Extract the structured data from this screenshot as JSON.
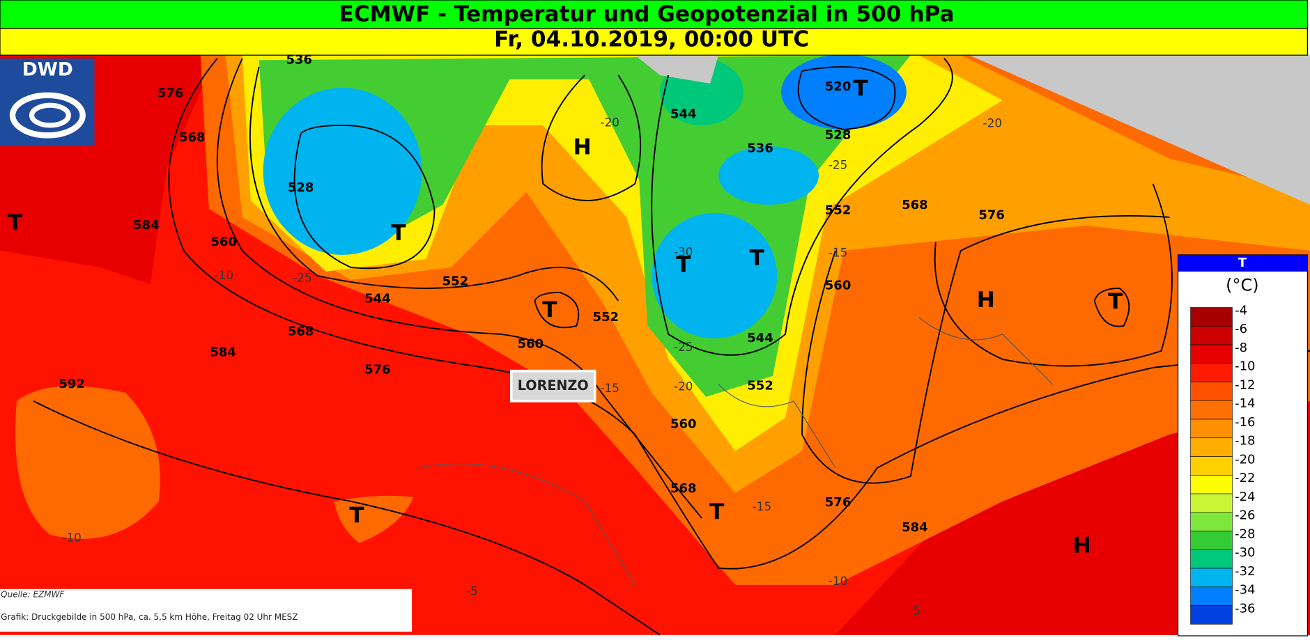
{
  "header": {
    "title": "ECMWF - Temperatur und Geopotenzial in 500 hPa",
    "subtitle": "Fr, 04.10.2019, 00:00 UTC"
  },
  "logo": {
    "text": "DWD"
  },
  "legend": {
    "title": "T",
    "unit": "(°C)",
    "levels": [
      {
        "label": -4,
        "color": "#a80000"
      },
      {
        "label": -6,
        "color": "#cc0000"
      },
      {
        "label": -8,
        "color": "#e80000"
      },
      {
        "label": -10,
        "color": "#ff1a00"
      },
      {
        "label": -12,
        "color": "#ff5000"
      },
      {
        "label": -14,
        "color": "#ff7000"
      },
      {
        "label": -16,
        "color": "#ff9000"
      },
      {
        "label": -18,
        "color": "#ffae00"
      },
      {
        "label": -20,
        "color": "#ffd000"
      },
      {
        "label": -22,
        "color": "#ffff00"
      },
      {
        "label": -24,
        "color": "#c8f534"
      },
      {
        "label": -26,
        "color": "#7ee83a"
      },
      {
        "label": -28,
        "color": "#33cc33"
      },
      {
        "label": -30,
        "color": "#00c87a"
      },
      {
        "label": -32,
        "color": "#00b4f0"
      },
      {
        "label": -34,
        "color": "#0080ff"
      },
      {
        "label": -36,
        "color": "#0040e0"
      }
    ]
  },
  "map": {
    "pressure_centers": [
      "T",
      "T",
      "T",
      "T",
      "T",
      "T",
      "T",
      "T",
      "T",
      "H",
      "H",
      "H"
    ],
    "contour_labels": [
      592,
      584,
      584,
      576,
      576,
      568,
      568,
      560,
      560,
      552,
      552,
      544,
      528,
      536,
      544,
      536,
      520,
      528,
      552,
      568,
      576,
      560,
      544,
      552,
      560,
      568,
      576,
      584
    ],
    "temperature_labels": [
      -20,
      -20,
      -25,
      -25,
      -10,
      -15,
      -30,
      -25,
      -20,
      -15,
      -15,
      -10,
      -10,
      -5,
      -5
    ],
    "storm_label": "LORENZO"
  },
  "source": {
    "lines": [
      "Quelle: EZMWF",
      "Grafik: Druckgebilde in 500 hPa, ca. 5,5 km Höhe, Freitag 02 Uhr MESZ"
    ]
  }
}
